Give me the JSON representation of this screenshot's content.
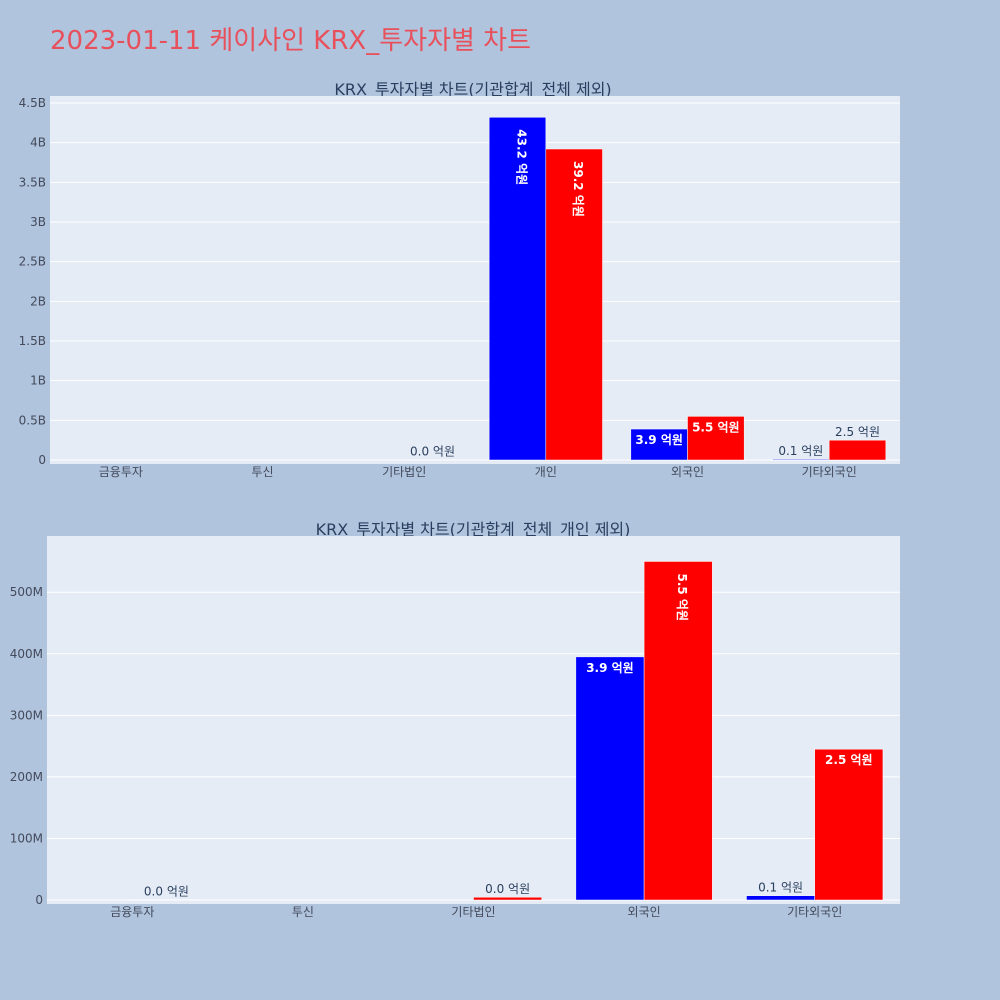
{
  "page_title": "2023-01-11 케이사인 KRX_투자자별 차트",
  "colors": {
    "background": "#b0c4de",
    "plot_bg": "#e5ecf6",
    "series_a": "#0000ff",
    "series_b": "#ff0000",
    "title": "#e8505b"
  },
  "chart_data": [
    {
      "type": "bar",
      "title": "KRX_투자자별 차트(기관합계_전체 제외)",
      "categories": [
        "금융투자",
        "투신",
        "기타법인",
        "개인",
        "외국인",
        "기타외국인"
      ],
      "ylim": [
        0,
        4500000000
      ],
      "yticks": [
        0,
        500000000,
        1000000000,
        1500000000,
        2000000000,
        2500000000,
        3000000000,
        3500000000,
        4000000000,
        4500000000
      ],
      "ytick_labels": [
        "0",
        "0.5B",
        "1B",
        "1.5B",
        "2B",
        "2.5B",
        "3B",
        "3.5B",
        "4B",
        "4.5B"
      ],
      "grid": true,
      "series": [
        {
          "values": [
            0,
            0,
            0,
            4320000000,
            390000000,
            10000000
          ],
          "labels": [
            "",
            "",
            "",
            "43.2 억원",
            "3.9 억원",
            "0.1 억원"
          ]
        },
        {
          "values": [
            0,
            0,
            4000000,
            3920000000,
            550000000,
            250000000
          ],
          "labels": [
            "",
            "",
            "0.0 억원",
            "39.2 억원",
            "5.5 억원",
            "2.5 억원"
          ]
        }
      ]
    },
    {
      "type": "bar",
      "title": "KRX_투자자별 차트(기관합계_전체_개인 제외)",
      "categories": [
        "금융투자",
        "투신",
        "기타법인",
        "외국인",
        "기타외국인"
      ],
      "ylim": [
        0,
        580000000
      ],
      "yticks": [
        0,
        100000000,
        200000000,
        300000000,
        400000000,
        500000000
      ],
      "ytick_labels": [
        "0",
        "100M",
        "200M",
        "300M",
        "400M",
        "500M"
      ],
      "grid": true,
      "series": [
        {
          "values": [
            0,
            0,
            0,
            395000000,
            7000000
          ],
          "labels": [
            "",
            "",
            "",
            "3.9 억원",
            "0.1 억원"
          ]
        },
        {
          "values": [
            600000,
            0,
            4500000,
            550000000,
            245000000
          ],
          "labels": [
            "0.0 억원",
            "",
            "0.0 억원",
            "5.5 억원",
            "2.5 억원"
          ]
        }
      ]
    }
  ]
}
